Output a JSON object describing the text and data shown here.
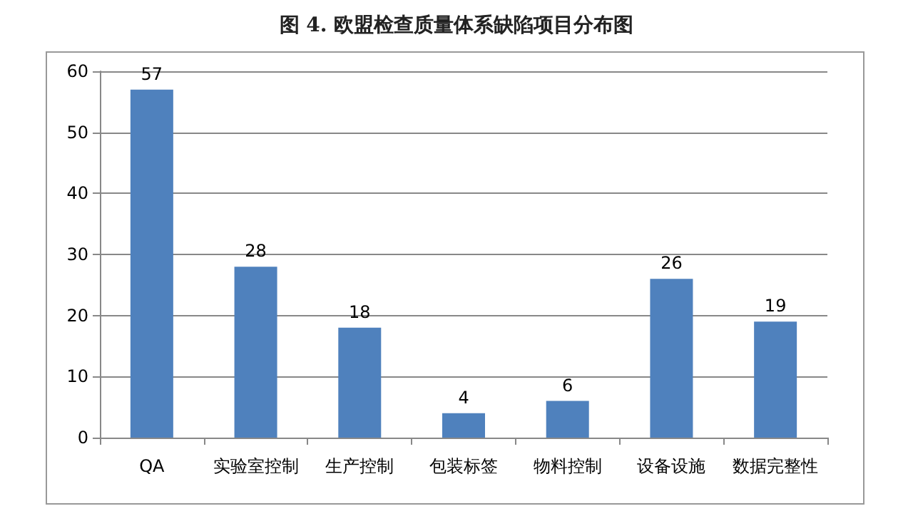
{
  "chart_data": {
    "type": "bar",
    "title": "图 4. 欧盟检查质量体系缺陷项目分布图",
    "categories": [
      "QA",
      "实验室控制",
      "生产控制",
      "包装标签",
      "物料控制",
      "设备设施",
      "数据完整性"
    ],
    "values": [
      57,
      28,
      18,
      4,
      6,
      26,
      19
    ],
    "color": "#4f81bd",
    "ylim": [
      0,
      60
    ],
    "yticks": [
      0,
      10,
      20,
      30,
      40,
      50,
      60
    ],
    "grid": "y",
    "data_labels": true
  }
}
